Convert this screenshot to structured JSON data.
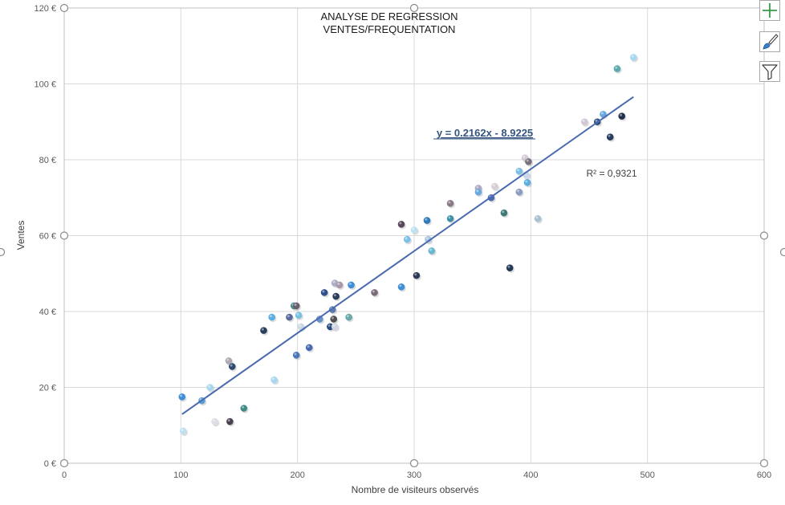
{
  "chart_data": {
    "type": "scatter",
    "title_lines": [
      "ANALYSE DE REGRESSION",
      "VENTES/FREQUENTATION"
    ],
    "xlabel": "Nombre de visiteurs observés",
    "ylabel": "Ventes",
    "xlim": [
      0,
      600
    ],
    "ylim": [
      0,
      120
    ],
    "x_ticks": [
      "0",
      "100",
      "200",
      "300",
      "400",
      "500",
      "600"
    ],
    "y_ticks": [
      "0 €",
      "20 €",
      "40 €",
      "60 €",
      "80 €",
      "100 €",
      "120 €"
    ],
    "grid": true,
    "trendline": {
      "slope": 0.2162,
      "intercept": -8.9225,
      "x_range": [
        101,
        488
      ],
      "color": "#4a6ab0"
    },
    "equation_label": "y = 0.2162x - 8.9225",
    "r2_label": "R² = 0,9321",
    "points": [
      {
        "x": 101,
        "y": 17.5,
        "c": "#3e8fd8"
      },
      {
        "x": 102,
        "y": 8.5,
        "c": "#bfe0f0"
      },
      {
        "x": 118,
        "y": 16.5,
        "c": "#5aa0d8"
      },
      {
        "x": 125,
        "y": 20,
        "c": "#a8d8f0"
      },
      {
        "x": 129,
        "y": 11,
        "c": "#dcdde6"
      },
      {
        "x": 141,
        "y": 27,
        "c": "#b0a8b4"
      },
      {
        "x": 142,
        "y": 11,
        "c": "#4a4050"
      },
      {
        "x": 144,
        "y": 25.5,
        "c": "#2e4a72"
      },
      {
        "x": 154,
        "y": 14.5,
        "c": "#3f8a88"
      },
      {
        "x": 171,
        "y": 35,
        "c": "#283c5c"
      },
      {
        "x": 178,
        "y": 38.5,
        "c": "#5aaee0"
      },
      {
        "x": 180,
        "y": 22,
        "c": "#a8d8f0"
      },
      {
        "x": 193,
        "y": 38.5,
        "c": "#5c6a9c"
      },
      {
        "x": 197,
        "y": 41.5,
        "c": "#4a9090"
      },
      {
        "x": 199,
        "y": 41.5,
        "c": "#6a6070"
      },
      {
        "x": 199,
        "y": 28.5,
        "c": "#4a78b8"
      },
      {
        "x": 201,
        "y": 39,
        "c": "#7ac0e0"
      },
      {
        "x": 203,
        "y": 36,
        "c": "#c8d8e6"
      },
      {
        "x": 210,
        "y": 30.5,
        "c": "#4a6ab0"
      },
      {
        "x": 219,
        "y": 38,
        "c": "#6a90c8"
      },
      {
        "x": 223,
        "y": 45,
        "c": "#2f4e8a"
      },
      {
        "x": 228,
        "y": 36,
        "c": "#284a80"
      },
      {
        "x": 230,
        "y": 40.5,
        "c": "#5a7ab0"
      },
      {
        "x": 231,
        "y": 38,
        "c": "#505050"
      },
      {
        "x": 232,
        "y": 47.5,
        "c": "#a8b0c8"
      },
      {
        "x": 232,
        "y": 36,
        "c": "#d0d6e0"
      },
      {
        "x": 233,
        "y": 44,
        "c": "#283c5c"
      },
      {
        "x": 236,
        "y": 47,
        "c": "#a898a8"
      },
      {
        "x": 244,
        "y": 38.5,
        "c": "#68a8a8"
      },
      {
        "x": 246,
        "y": 47,
        "c": "#3e8fd8"
      },
      {
        "x": 266,
        "y": 45,
        "c": "#7a6a7a"
      },
      {
        "x": 289,
        "y": 63,
        "c": "#5a4858"
      },
      {
        "x": 289,
        "y": 46.5,
        "c": "#3e8fd8"
      },
      {
        "x": 294,
        "y": 59,
        "c": "#7ac0e8"
      },
      {
        "x": 300,
        "y": 61.5,
        "c": "#bfe0f0"
      },
      {
        "x": 302,
        "y": 49.5,
        "c": "#2e3a58"
      },
      {
        "x": 311,
        "y": 64,
        "c": "#2f7ab8"
      },
      {
        "x": 312,
        "y": 59,
        "c": "#a8c4e4"
      },
      {
        "x": 315,
        "y": 56,
        "c": "#6ab8d0"
      },
      {
        "x": 331,
        "y": 68.5,
        "c": "#8a7888"
      },
      {
        "x": 331,
        "y": 64.5,
        "c": "#3e90a8"
      },
      {
        "x": 355,
        "y": 72.5,
        "c": "#b0a8c0"
      },
      {
        "x": 355,
        "y": 71.5,
        "c": "#6aa8e0"
      },
      {
        "x": 366,
        "y": 70,
        "c": "#4a6ab0"
      },
      {
        "x": 369,
        "y": 73,
        "c": "#d8d0d8"
      },
      {
        "x": 377,
        "y": 66,
        "c": "#3f7a78"
      },
      {
        "x": 382,
        "y": 51.5,
        "c": "#243858"
      },
      {
        "x": 390,
        "y": 71.5,
        "c": "#8a9cc0"
      },
      {
        "x": 390,
        "y": 77,
        "c": "#7ac0e8"
      },
      {
        "x": 395,
        "y": 80.5,
        "c": "#d4ccd4"
      },
      {
        "x": 396,
        "y": 76,
        "c": "#c8d8e8"
      },
      {
        "x": 397,
        "y": 74,
        "c": "#5aaee0"
      },
      {
        "x": 398,
        "y": 79.5,
        "c": "#7a7080"
      },
      {
        "x": 406,
        "y": 64.5,
        "c": "#a8c0d0"
      },
      {
        "x": 446,
        "y": 90,
        "c": "#d0c8d4"
      },
      {
        "x": 457,
        "y": 90,
        "c": "#2e5080"
      },
      {
        "x": 462,
        "y": 92,
        "c": "#6aa8e0"
      },
      {
        "x": 468,
        "y": 86,
        "c": "#283c5c"
      },
      {
        "x": 474,
        "y": 104,
        "c": "#5aaab0"
      },
      {
        "x": 478,
        "y": 91.5,
        "c": "#243050"
      },
      {
        "x": 488,
        "y": 107,
        "c": "#a8d8f0"
      }
    ]
  },
  "toolbar": {
    "elements_icon": "plus-icon",
    "styles_icon": "brush-icon",
    "filter_icon": "funnel-icon"
  }
}
